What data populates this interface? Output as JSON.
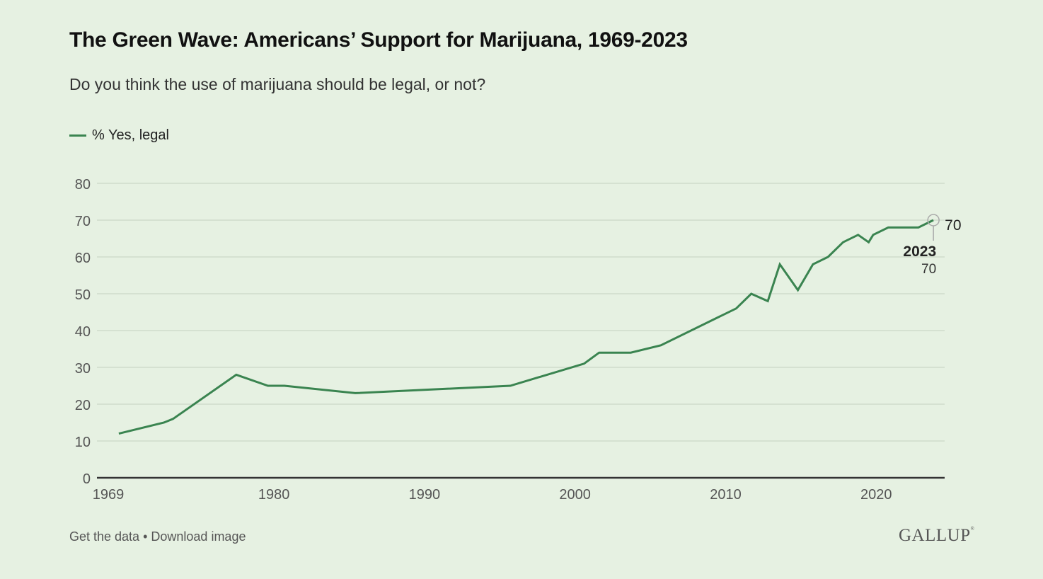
{
  "header": {
    "title": "The Green Wave: Americans’ Support for Marijuana, 1969-2023",
    "subtitle": "Do you think the use of marijuana should be legal, or not?"
  },
  "footer": {
    "get_data": "Get the data",
    "separator": " • ",
    "download": "Download image",
    "brand": "GALLUP",
    "brand_mark": "®"
  },
  "colors": {
    "line": "#3a8450",
    "background": "#e6f1e2",
    "grid": "#cfdccb",
    "axis": "#333333"
  },
  "chart_data": {
    "type": "line",
    "title": "The Green Wave: Americans’ Support for Marijuana, 1969-2023",
    "subtitle": "Do you think the use of marijuana should be legal, or not?",
    "xlabel": "",
    "ylabel": "",
    "ylim": [
      0,
      80
    ],
    "yticks": [
      0,
      10,
      20,
      30,
      40,
      50,
      60,
      70,
      80
    ],
    "xlim": [
      1969,
      2025.2
    ],
    "xticks": [
      1969,
      1980,
      1990,
      2000,
      2010,
      2020
    ],
    "grid": true,
    "legend_position": "top-left",
    "series": [
      {
        "name": "% Yes, legal",
        "x": [
          1969.7,
          1972.7,
          1973.3,
          1977.5,
          1979.6,
          1980.7,
          1985.4,
          1995.7,
          2000.6,
          2001.6,
          2003.7,
          2005.7,
          2009.7,
          2010.7,
          2011.7,
          2012.8,
          2013.6,
          2014.8,
          2015.8,
          2016.8,
          2017.8,
          2018.8,
          2019.5,
          2019.8,
          2020.8,
          2021.8,
          2022.8,
          2023.8
        ],
        "values": [
          12,
          15,
          16,
          28,
          25,
          25,
          23,
          25,
          31,
          34,
          34,
          36,
          44,
          46,
          50,
          48,
          58,
          51,
          58,
          60,
          64,
          66,
          64,
          66,
          68,
          68,
          68,
          70
        ]
      }
    ],
    "annotations": [
      {
        "year_label": "2023",
        "value_label": "70",
        "end_label": "70"
      }
    ]
  }
}
